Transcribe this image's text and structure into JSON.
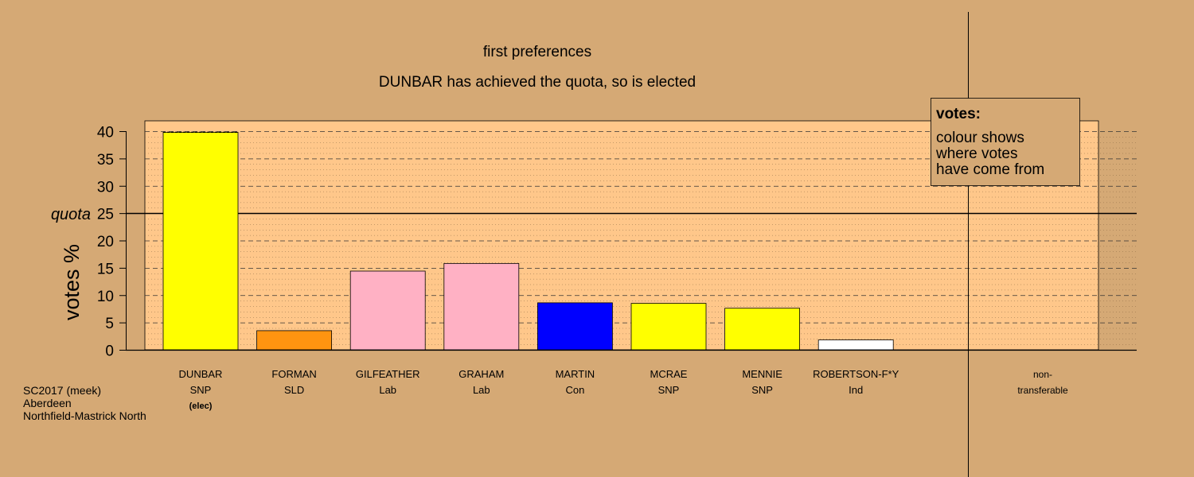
{
  "chart_data": {
    "type": "bar",
    "title": "first preferences",
    "subtitle": "DUNBAR has achieved the quota, so is elected",
    "ylabel": "votes %",
    "ylim": [
      0,
      40
    ],
    "yticks": [
      0,
      5,
      10,
      15,
      20,
      25,
      30,
      35,
      40
    ],
    "quota": 25,
    "quota_label": "quota",
    "candidates": [
      {
        "name": "DUNBAR",
        "party": "SNP",
        "status": "(elec)",
        "value": 39.8,
        "color": "#ffff00"
      },
      {
        "name": "FORMAN",
        "party": "SLD",
        "status": "",
        "value": 3.5,
        "color": "#ff9410"
      },
      {
        "name": "GILFEATHER",
        "party": "Lab",
        "status": "",
        "value": 14.4,
        "color": "#ffb1c4"
      },
      {
        "name": "GRAHAM",
        "party": "Lab",
        "status": "",
        "value": 15.8,
        "color": "#ffb1c4"
      },
      {
        "name": "MARTIN",
        "party": "Con",
        "status": "",
        "value": 8.6,
        "color": "#0000ff"
      },
      {
        "name": "MCRAE",
        "party": "SNP",
        "status": "",
        "value": 8.5,
        "color": "#ffff00"
      },
      {
        "name": "MENNIE",
        "party": "SNP",
        "status": "",
        "value": 7.6,
        "color": "#ffff00"
      },
      {
        "name": "ROBERTSON-F*Y",
        "party": "Ind",
        "status": "",
        "value": 1.8,
        "color": "#ffffff"
      }
    ],
    "nontransferable": {
      "label_line1": "non-",
      "label_line2": "transferable",
      "value": 0
    },
    "legend": {
      "title": "votes:",
      "lines": [
        "colour shows",
        "where votes",
        "have come from"
      ],
      "position": "top-right"
    },
    "grid": true
  },
  "info": {
    "line1": "SC2017 (meek)",
    "line2": "Aberdeen",
    "line3": "Northfield-Mastrick North"
  },
  "colors": {
    "background": "#d5a975",
    "plot_background": "#ffc78a",
    "axis": "#000000"
  }
}
